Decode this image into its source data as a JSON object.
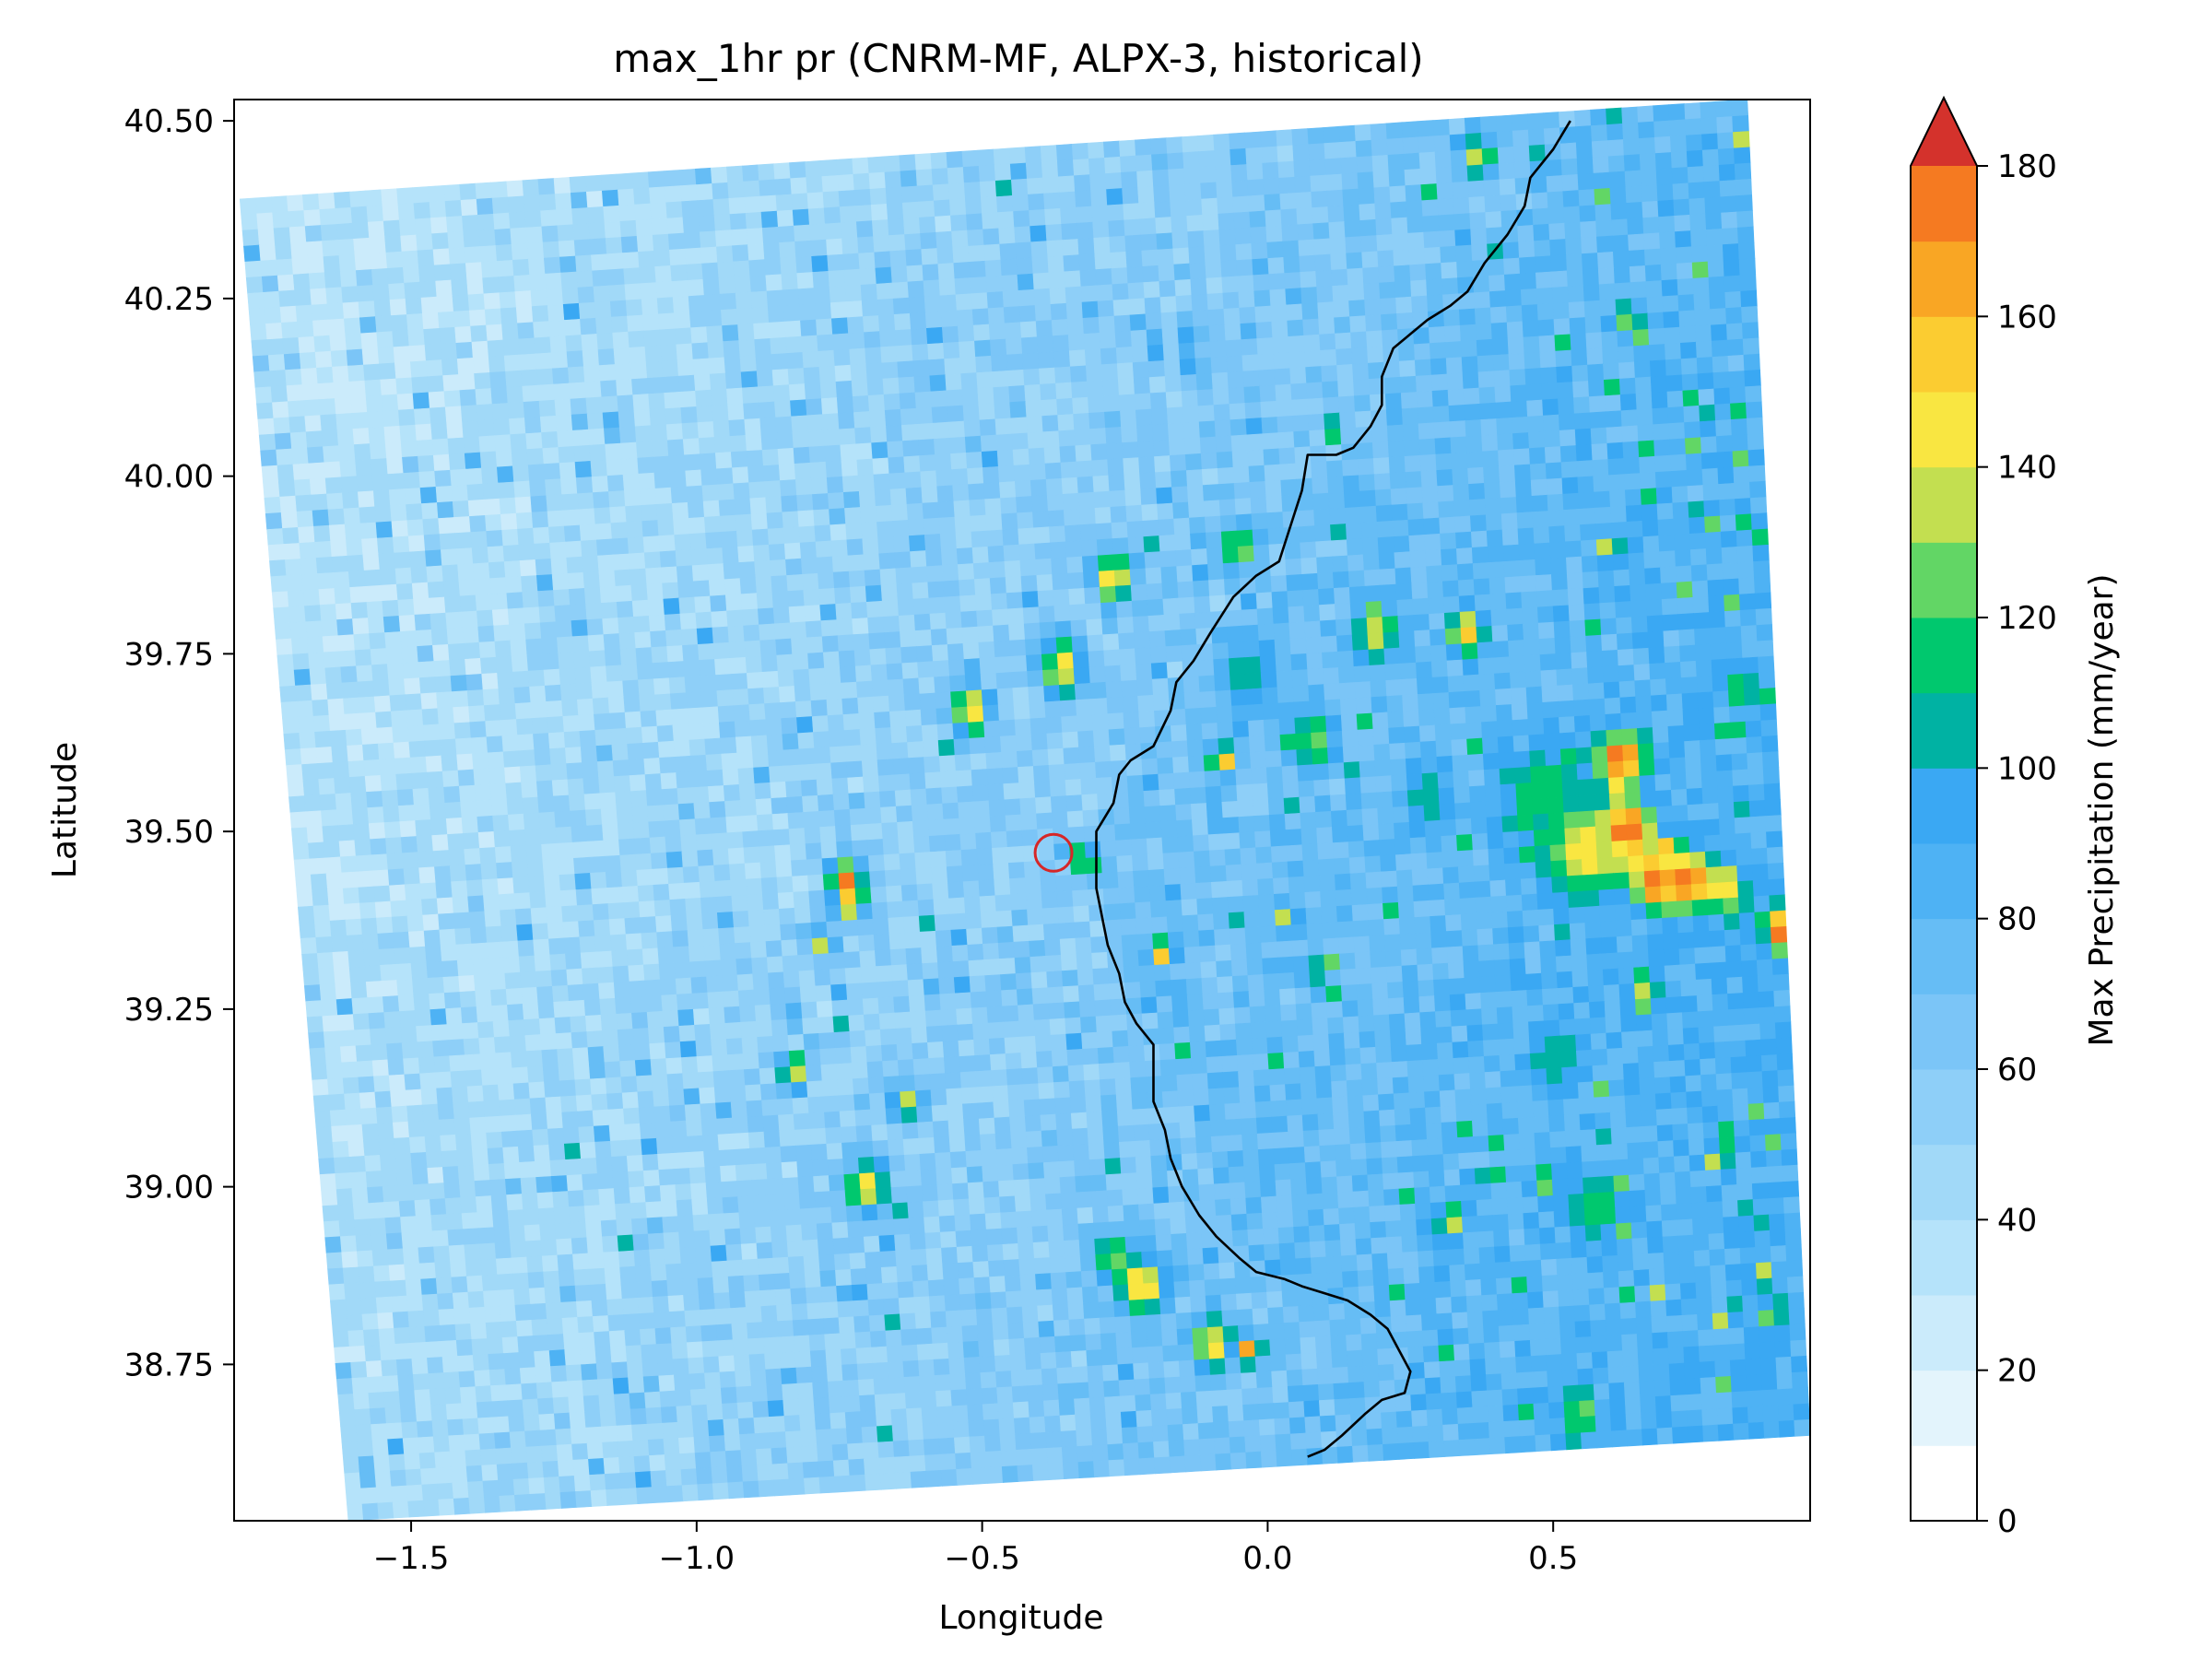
{
  "chart_data": {
    "type": "heatmap",
    "title": "max_1hr pr (CNRM-MF, ALPX-3, historical)",
    "xlabel": "Longitude",
    "ylabel": "Latitude",
    "xlim": [
      -1.81,
      0.95
    ],
    "ylim": [
      38.53,
      40.53
    ],
    "x_ticks": [
      -1.5,
      -1.0,
      -0.5,
      0.0,
      0.5
    ],
    "x_tick_labels": [
      "−1.5",
      "−1.0",
      "−0.5",
      "0.0",
      "0.5"
    ],
    "y_ticks": [
      38.75,
      39.0,
      39.25,
      39.5,
      39.75,
      40.0,
      40.25,
      40.5
    ],
    "y_tick_labels": [
      "38.75",
      "39.00",
      "39.25",
      "39.50",
      "39.75",
      "40.00",
      "40.25",
      "40.50"
    ],
    "grid": false,
    "domain_corners": {
      "top_left": [
        -1.8,
        40.39
      ],
      "top_right": [
        0.84,
        40.53
      ],
      "bottom_right": [
        0.95,
        38.65
      ],
      "bottom_left": [
        -1.61,
        38.53
      ]
    },
    "colorbar": {
      "label": "Max Precipitation (mm/year)",
      "ticks": [
        0,
        20,
        40,
        60,
        80,
        100,
        120,
        140,
        160,
        180
      ],
      "tick_labels": [
        "0",
        "20",
        "40",
        "60",
        "80",
        "100",
        "120",
        "140",
        "160",
        "180"
      ],
      "range": [
        0,
        180
      ],
      "extend": "max",
      "levels": [
        0,
        10,
        20,
        30,
        40,
        50,
        60,
        70,
        80,
        90,
        100,
        110,
        120,
        130,
        140,
        150,
        160,
        170,
        180
      ],
      "colors": [
        "#ffffff",
        "#e3f4fc",
        "#cbebfb",
        "#b5e3fa",
        "#a1d9f8",
        "#8ecff8",
        "#7bc5f7",
        "#66bdf5",
        "#4eb2f4",
        "#3aa8f3",
        "#00b2a3",
        "#00c86e",
        "#62d665",
        "#c3df50",
        "#f9e641",
        "#fbcc31",
        "#f9a624",
        "#f57a21",
        "#d4322c"
      ],
      "extend_color": "#d4322c"
    },
    "hotspots": [
      {
        "lon": 0.62,
        "lat": 39.6,
        "value": 180,
        "radius": 0.04
      },
      {
        "lon": 0.63,
        "lat": 39.5,
        "value": 185,
        "radius": 0.045
      },
      {
        "lon": 0.68,
        "lat": 39.43,
        "value": 182,
        "radius": 0.04
      },
      {
        "lon": 0.74,
        "lat": 39.43,
        "value": 182,
        "radius": 0.04
      },
      {
        "lon": 0.55,
        "lat": 39.47,
        "value": 150,
        "radius": 0.06
      },
      {
        "lon": 0.8,
        "lat": 39.42,
        "value": 150,
        "radius": 0.035
      },
      {
        "lon": 0.9,
        "lat": 39.36,
        "value": 178,
        "radius": 0.03
      },
      {
        "lon": 0.48,
        "lat": 39.55,
        "value": 118,
        "radius": 0.07
      },
      {
        "lon": -0.74,
        "lat": 39.43,
        "value": 178,
        "radius": 0.03
      },
      {
        "lon": -0.73,
        "lat": 39.4,
        "value": 160,
        "radius": 0.025
      },
      {
        "lon": -0.08,
        "lat": 39.6,
        "value": 178,
        "radius": 0.02
      },
      {
        "lon": -0.52,
        "lat": 39.67,
        "value": 155,
        "radius": 0.035
      },
      {
        "lon": -0.36,
        "lat": 39.73,
        "value": 148,
        "radius": 0.04
      },
      {
        "lon": -0.27,
        "lat": 39.86,
        "value": 150,
        "radius": 0.035
      },
      {
        "lon": -0.05,
        "lat": 39.9,
        "value": 142,
        "radius": 0.03
      },
      {
        "lon": 0.19,
        "lat": 39.78,
        "value": 140,
        "radius": 0.035
      },
      {
        "lon": 0.35,
        "lat": 39.78,
        "value": 156,
        "radius": 0.03
      },
      {
        "lon": 0.08,
        "lat": 39.63,
        "value": 135,
        "radius": 0.035
      },
      {
        "lon": 0.63,
        "lat": 40.22,
        "value": 130,
        "radius": 0.025
      },
      {
        "lon": 0.37,
        "lat": 40.45,
        "value": 148,
        "radius": 0.025
      },
      {
        "lon": 0.83,
        "lat": 39.7,
        "value": 138,
        "radius": 0.02
      },
      {
        "lon": 0.6,
        "lat": 39.9,
        "value": 150,
        "radius": 0.02
      },
      {
        "lon": -0.18,
        "lat": 39.33,
        "value": 172,
        "radius": 0.02
      },
      {
        "lon": 0.03,
        "lat": 39.38,
        "value": 140,
        "radius": 0.02
      },
      {
        "lon": -0.83,
        "lat": 39.16,
        "value": 145,
        "radius": 0.025
      },
      {
        "lon": -0.63,
        "lat": 39.12,
        "value": 140,
        "radius": 0.025
      },
      {
        "lon": -0.7,
        "lat": 39.0,
        "value": 145,
        "radius": 0.04
      },
      {
        "lon": -0.78,
        "lat": 39.34,
        "value": 142,
        "radius": 0.02
      },
      {
        "lon": -0.22,
        "lat": 38.86,
        "value": 160,
        "radius": 0.04
      },
      {
        "lon": -0.27,
        "lat": 38.9,
        "value": 135,
        "radius": 0.03
      },
      {
        "lon": -0.1,
        "lat": 38.78,
        "value": 155,
        "radius": 0.035
      },
      {
        "lon": -0.03,
        "lat": 38.77,
        "value": 178,
        "radius": 0.02
      },
      {
        "lon": 0.32,
        "lat": 38.95,
        "value": 145,
        "radius": 0.025
      },
      {
        "lon": 0.55,
        "lat": 38.68,
        "value": 135,
        "radius": 0.03
      },
      {
        "lon": 0.58,
        "lat": 38.97,
        "value": 118,
        "radius": 0.05
      },
      {
        "lon": 0.66,
        "lat": 39.27,
        "value": 138,
        "radius": 0.03
      },
      {
        "lon": 0.8,
        "lat": 39.07,
        "value": 130,
        "radius": 0.02
      },
      {
        "lon": 0.5,
        "lat": 39.18,
        "value": 110,
        "radius": 0.05
      },
      {
        "lon": -0.03,
        "lat": 39.72,
        "value": 110,
        "radius": 0.05
      },
      {
        "lon": 0.28,
        "lat": 39.55,
        "value": 108,
        "radius": 0.05
      },
      {
        "lon": -0.32,
        "lat": 39.46,
        "value": 140,
        "radius": 0.025
      }
    ],
    "coastline": [
      [
        0.53,
        40.5
      ],
      [
        0.5,
        40.46
      ],
      [
        0.46,
        40.42
      ],
      [
        0.45,
        40.38
      ],
      [
        0.42,
        40.34
      ],
      [
        0.38,
        40.3
      ],
      [
        0.35,
        40.26
      ],
      [
        0.32,
        40.24
      ],
      [
        0.28,
        40.22
      ],
      [
        0.25,
        40.2
      ],
      [
        0.22,
        40.18
      ],
      [
        0.2,
        40.14
      ],
      [
        0.2,
        40.1
      ],
      [
        0.18,
        40.07
      ],
      [
        0.15,
        40.04
      ],
      [
        0.12,
        40.03
      ],
      [
        0.07,
        40.03
      ],
      [
        0.06,
        39.98
      ],
      [
        0.04,
        39.93
      ],
      [
        0.02,
        39.88
      ],
      [
        -0.02,
        39.86
      ],
      [
        -0.06,
        39.83
      ],
      [
        -0.1,
        39.78
      ],
      [
        -0.13,
        39.74
      ],
      [
        -0.16,
        39.71
      ],
      [
        -0.17,
        39.67
      ],
      [
        -0.2,
        39.62
      ],
      [
        -0.24,
        39.6
      ],
      [
        -0.26,
        39.58
      ],
      [
        -0.27,
        39.54
      ],
      [
        -0.3,
        39.5
      ],
      [
        -0.3,
        39.46
      ],
      [
        -0.3,
        39.42
      ],
      [
        -0.29,
        39.38
      ],
      [
        -0.28,
        39.34
      ],
      [
        -0.26,
        39.3
      ],
      [
        -0.25,
        39.26
      ],
      [
        -0.23,
        39.23
      ],
      [
        -0.2,
        39.2
      ],
      [
        -0.2,
        39.16
      ],
      [
        -0.2,
        39.12
      ],
      [
        -0.18,
        39.08
      ],
      [
        -0.17,
        39.04
      ],
      [
        -0.15,
        39.0
      ],
      [
        -0.12,
        38.96
      ],
      [
        -0.09,
        38.93
      ],
      [
        -0.05,
        38.9
      ],
      [
        -0.02,
        38.88
      ],
      [
        0.03,
        38.87
      ],
      [
        0.06,
        38.86
      ],
      [
        0.1,
        38.85
      ],
      [
        0.14,
        38.84
      ],
      [
        0.18,
        38.82
      ],
      [
        0.21,
        38.8
      ],
      [
        0.23,
        38.77
      ],
      [
        0.25,
        38.74
      ],
      [
        0.24,
        38.71
      ],
      [
        0.2,
        38.7
      ],
      [
        0.17,
        38.68
      ],
      [
        0.13,
        38.65
      ],
      [
        0.1,
        38.63
      ],
      [
        0.07,
        38.62
      ]
    ],
    "marker": {
      "type": "circle",
      "lon": -0.375,
      "lat": 39.47,
      "color": "#d62728"
    }
  }
}
